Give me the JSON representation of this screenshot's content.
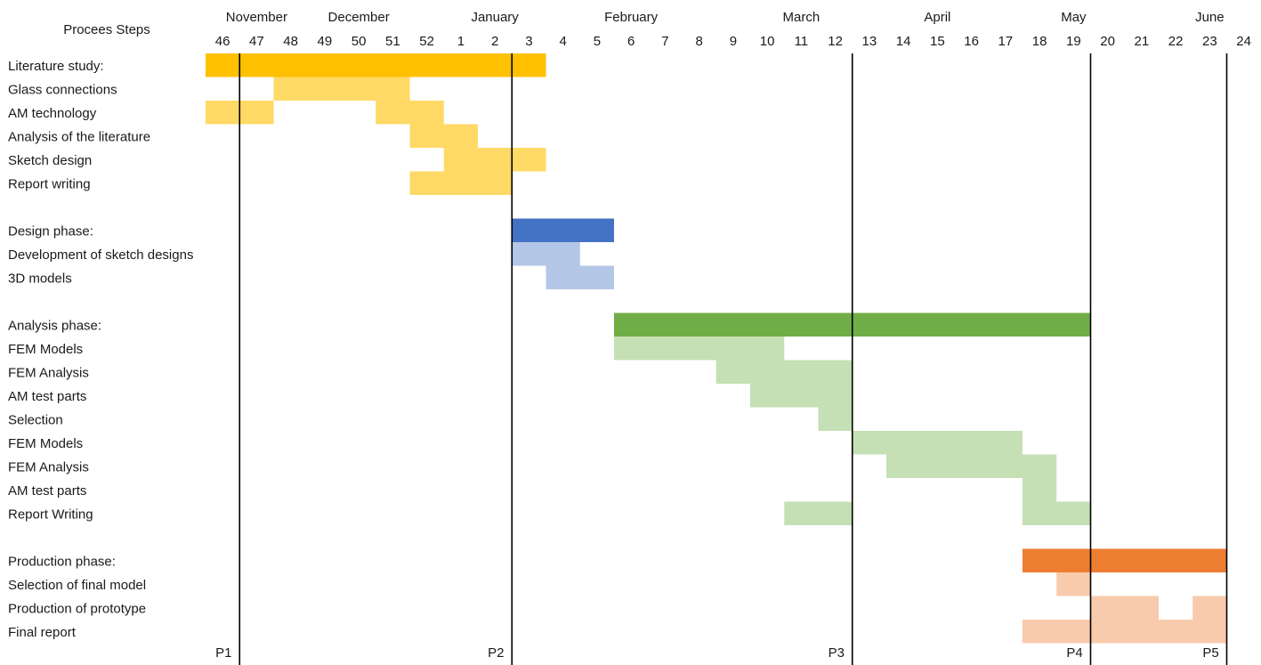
{
  "chart_data": {
    "type": "gantt",
    "header": "Procees Steps",
    "weeks": [
      "46",
      "47",
      "48",
      "49",
      "50",
      "51",
      "52",
      "1",
      "2",
      "3",
      "4",
      "5",
      "6",
      "7",
      "8",
      "9",
      "10",
      "11",
      "12",
      "13",
      "14",
      "15",
      "16",
      "17",
      "18",
      "19",
      "20",
      "21",
      "22",
      "23",
      "24"
    ],
    "months": [
      {
        "label": "November",
        "week": "47"
      },
      {
        "label": "December",
        "week": "50"
      },
      {
        "label": "January",
        "week": "2"
      },
      {
        "label": "February",
        "week": "6"
      },
      {
        "label": "March",
        "week": "11"
      },
      {
        "label": "April",
        "week": "15"
      },
      {
        "label": "May",
        "week": "19"
      },
      {
        "label": "June",
        "week": "23"
      }
    ],
    "colors": {
      "literature_main": "#FFC000",
      "literature_sub": "#FFD966",
      "design_main": "#4472C4",
      "design_sub": "#B4C7E7",
      "analysis_main": "#70AD47",
      "analysis_sub": "#C5E0B4",
      "production_main": "#ED7D31",
      "production_sub": "#F8CBAD",
      "milestone_line": "#000000"
    },
    "tasks": [
      {
        "label": "Literature study:",
        "color": "literature_main",
        "main": true,
        "bars": [
          [
            "46",
            "3"
          ]
        ]
      },
      {
        "label": "Glass connections",
        "color": "literature_sub",
        "bars": [
          [
            "48",
            "51"
          ]
        ]
      },
      {
        "label": "AM technology",
        "color": "literature_sub",
        "bars": [
          [
            "46",
            "47"
          ],
          [
            "51",
            "52"
          ]
        ]
      },
      {
        "label": "Analysis of the literature",
        "color": "literature_sub",
        "bars": [
          [
            "52",
            "1"
          ]
        ]
      },
      {
        "label": "Sketch design",
        "color": "literature_sub",
        "bars": [
          [
            "1",
            "3"
          ]
        ]
      },
      {
        "label": "Report writing",
        "color": "literature_sub",
        "bars": [
          [
            "52",
            "2"
          ]
        ]
      },
      {
        "label": "",
        "bars": []
      },
      {
        "label": "Design phase:",
        "color": "design_main",
        "main": true,
        "bars": [
          [
            "3",
            "5"
          ]
        ]
      },
      {
        "label": "Development of sketch designs",
        "color": "design_sub",
        "bars": [
          [
            "3",
            "4"
          ]
        ]
      },
      {
        "label": "3D models",
        "color": "design_sub",
        "bars": [
          [
            "4",
            "5"
          ]
        ]
      },
      {
        "label": "",
        "bars": []
      },
      {
        "label": "Analysis phase:",
        "color": "analysis_main",
        "main": true,
        "bars": [
          [
            "6",
            "19"
          ]
        ]
      },
      {
        "label": "FEM Models",
        "color": "analysis_sub",
        "bars": [
          [
            "6",
            "10"
          ]
        ]
      },
      {
        "label": "FEM Analysis",
        "color": "analysis_sub",
        "bars": [
          [
            "9",
            "12"
          ]
        ]
      },
      {
        "label": "AM test parts",
        "color": "analysis_sub",
        "bars": [
          [
            "10",
            "12"
          ]
        ]
      },
      {
        "label": "Selection",
        "color": "analysis_sub",
        "bars": [
          [
            "12",
            "12"
          ]
        ]
      },
      {
        "label": "FEM Models",
        "color": "analysis_sub",
        "bars": [
          [
            "13",
            "17"
          ]
        ]
      },
      {
        "label": "FEM Analysis",
        "color": "analysis_sub",
        "bars": [
          [
            "14",
            "18"
          ]
        ]
      },
      {
        "label": "AM test parts",
        "color": "analysis_sub",
        "bars": [
          [
            "18",
            "18"
          ]
        ]
      },
      {
        "label": "Report Writing",
        "color": "analysis_sub",
        "bars": [
          [
            "11",
            "12"
          ],
          [
            "18",
            "19"
          ]
        ]
      },
      {
        "label": "",
        "bars": []
      },
      {
        "label": "Production phase:",
        "color": "production_main",
        "main": true,
        "bars": [
          [
            "18",
            "23"
          ]
        ]
      },
      {
        "label": "Selection of final model",
        "color": "production_sub",
        "bars": [
          [
            "19",
            "19"
          ]
        ]
      },
      {
        "label": "Production of prototype",
        "color": "production_sub",
        "bars": [
          [
            "20",
            "21"
          ],
          [
            "23",
            "23"
          ]
        ]
      },
      {
        "label": "Final report",
        "color": "production_sub",
        "bars": [
          [
            "18",
            "23"
          ]
        ]
      }
    ],
    "milestones": [
      {
        "label": "P1",
        "after_week": "46"
      },
      {
        "label": "P2",
        "after_week": "2"
      },
      {
        "label": "P3",
        "after_week": "12"
      },
      {
        "label": "P4",
        "after_week": "19"
      },
      {
        "label": "P5",
        "after_week": "23"
      }
    ]
  }
}
